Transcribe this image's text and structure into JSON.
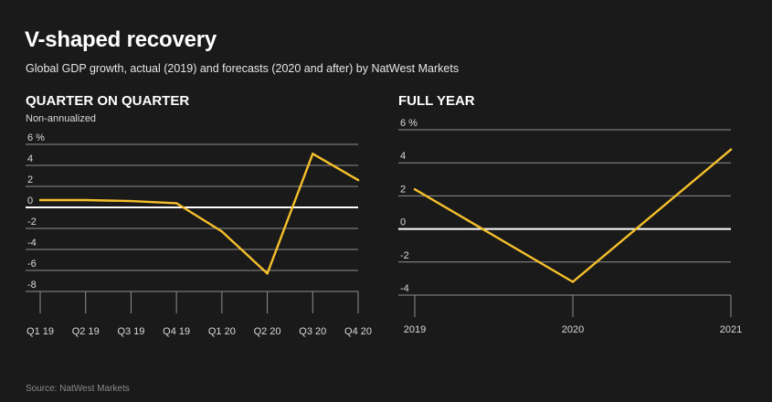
{
  "title": "V-shaped recovery",
  "subtitle": "Global GDP growth, actual (2019) and forecasts (2020 and after) by NatWest Markets",
  "source": "Source: NatWest Markets",
  "colors": {
    "background": "#1b1a1a",
    "line": "#f5c02b",
    "grid": "#8f8f8f",
    "zero": "#ffffff"
  },
  "chart_data": [
    {
      "type": "line",
      "title": "QUARTER ON QUARTER",
      "subtitle": "Non-annualized",
      "categories": [
        "Q1 19",
        "Q2 19",
        "Q3 19",
        "Q4 19",
        "Q1 20",
        "Q2 20",
        "Q3 20",
        "Q4 20"
      ],
      "values": [
        0.7,
        0.7,
        0.6,
        0.4,
        -2.3,
        -6.3,
        5.1,
        2.6
      ],
      "yticks": [
        6,
        4,
        2,
        0,
        -2,
        -4,
        -6,
        -8
      ],
      "ytick_labels": [
        "6 %",
        "4",
        "2",
        "0",
        "-2",
        "-4",
        "-6",
        "-8"
      ],
      "ylim": [
        -8,
        6
      ],
      "grid": true
    },
    {
      "type": "line",
      "title": "FULL YEAR",
      "categories": [
        "2019",
        "2020",
        "2021"
      ],
      "values": [
        2.4,
        -3.2,
        4.8
      ],
      "yticks": [
        6,
        4,
        2,
        0,
        -2,
        -4
      ],
      "ytick_labels": [
        "6 %",
        "4",
        "2",
        "0",
        "-2",
        "-4"
      ],
      "ylim": [
        -4,
        6
      ],
      "grid": true
    }
  ]
}
